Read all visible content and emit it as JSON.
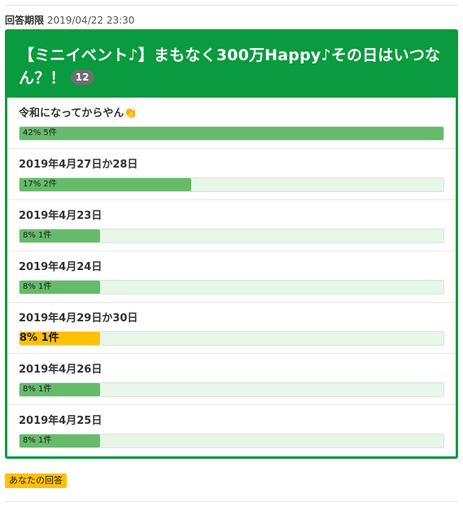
{
  "deadline": {
    "label": "回答期限",
    "value": "2019/04/22 23:30"
  },
  "poll": {
    "title": "【ミニイベント♪】まもなく300万Happy♪その日はいつなん？！",
    "vote_count": "12",
    "accent_color": "#0a9a3f",
    "bar_color": "#66bb6a",
    "selected_color": "#ffc107",
    "options": [
      {
        "label": "令和になってからやん👏",
        "percent": 42,
        "result": "42% 5件",
        "selected": false
      },
      {
        "label": "2019年4月27日か28日",
        "percent": 17,
        "result": "17% 2件",
        "selected": false
      },
      {
        "label": "2019年4月23日",
        "percent": 8,
        "result": "8% 1件",
        "selected": false
      },
      {
        "label": "2019年4月24日",
        "percent": 8,
        "result": "8% 1件",
        "selected": false
      },
      {
        "label": "2019年4月29日か30日",
        "percent": 8,
        "result": "8% 1件",
        "selected": true
      },
      {
        "label": "2019年4月26日",
        "percent": 8,
        "result": "8% 1件",
        "selected": false
      },
      {
        "label": "2019年4月25日",
        "percent": 8,
        "result": "8% 1件",
        "selected": false
      }
    ]
  },
  "footer": {
    "your_answer_label": "あなたの回答"
  }
}
